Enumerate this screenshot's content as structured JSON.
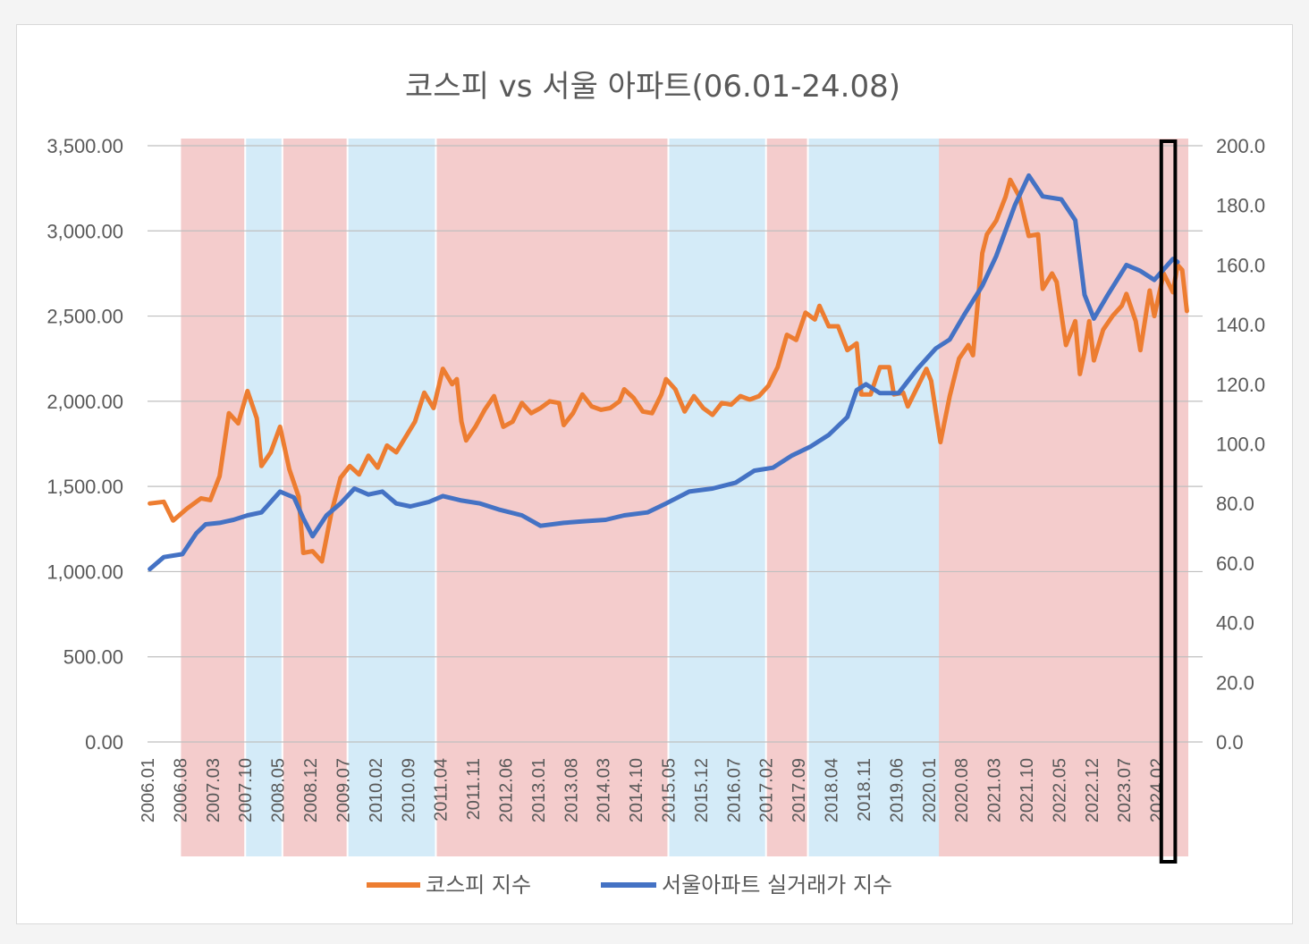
{
  "chart_data": {
    "type": "line",
    "title": "코스피 vs 서울 아파트(06.01-24.08)",
    "left_axis": {
      "ylim": [
        0,
        3500
      ],
      "ticks": [
        "0.00",
        "500.00",
        "1,000.00",
        "1,500.00",
        "2,000.00",
        "2,500.00",
        "3,000.00",
        "3,500.00"
      ]
    },
    "right_axis": {
      "ylim": [
        0,
        200
      ],
      "ticks": [
        "0.0",
        "20.0",
        "40.0",
        "60.0",
        "80.0",
        "100.0",
        "120.0",
        "140.0",
        "160.0",
        "180.0",
        "200.0"
      ]
    },
    "x_tick_labels": [
      "2006.01",
      "2006.08",
      "2007.03",
      "2007.10",
      "2008.05",
      "2008.12",
      "2009.07",
      "2010.02",
      "2010.09",
      "2011.04",
      "2011.11",
      "2012.06",
      "2013.01",
      "2013.08",
      "2014.03",
      "2014.10",
      "2015.05",
      "2015.12",
      "2016.07",
      "2017.02",
      "2017.09",
      "2018.04",
      "2018.11",
      "2019.06",
      "2020.01",
      "2020.08",
      "2021.03",
      "2021.10",
      "2022.05",
      "2022.12",
      "2023.07",
      "2024.02"
    ],
    "grid": true,
    "legend_position": "bottom",
    "shaded_periods": [
      {
        "start": "2006.08",
        "end": "2007.09",
        "color": "#f4cccc"
      },
      {
        "start": "2007.10",
        "end": "2008.05",
        "color": "#d4ebf8"
      },
      {
        "start": "2008.06",
        "end": "2009.07",
        "color": "#f4cccc"
      },
      {
        "start": "2009.08",
        "end": "2011.02",
        "color": "#d4ebf8"
      },
      {
        "start": "2011.03",
        "end": "2015.04",
        "color": "#f4cccc"
      },
      {
        "start": "2015.05",
        "end": "2017.01",
        "color": "#d4ebf8"
      },
      {
        "start": "2017.02",
        "end": "2017.10",
        "color": "#f4cccc"
      },
      {
        "start": "2017.11",
        "end": "2020.03",
        "color": "#d4ebf8"
      },
      {
        "start": "2020.03",
        "end": "2024.08",
        "color": "#f4cccc"
      }
    ],
    "highlight_box": {
      "start": "2024.03",
      "end": "2024.05"
    },
    "series": [
      {
        "name": "코스피 지수",
        "axis": "left",
        "color": "#ed7d31",
        "points": [
          [
            "2006.01",
            1400
          ],
          [
            "2006.04",
            1410
          ],
          [
            "2006.06",
            1300
          ],
          [
            "2006.09",
            1370
          ],
          [
            "2006.12",
            1430
          ],
          [
            "2007.02",
            1420
          ],
          [
            "2007.04",
            1560
          ],
          [
            "2007.06",
            1930
          ],
          [
            "2007.08",
            1870
          ],
          [
            "2007.10",
            2060
          ],
          [
            "2007.12",
            1900
          ],
          [
            "2008.01",
            1620
          ],
          [
            "2008.03",
            1700
          ],
          [
            "2008.05",
            1850
          ],
          [
            "2008.07",
            1600
          ],
          [
            "2008.09",
            1440
          ],
          [
            "2008.10",
            1110
          ],
          [
            "2008.12",
            1120
          ],
          [
            "2009.02",
            1060
          ],
          [
            "2009.04",
            1340
          ],
          [
            "2009.06",
            1550
          ],
          [
            "2009.08",
            1620
          ],
          [
            "2009.10",
            1570
          ],
          [
            "2009.12",
            1680
          ],
          [
            "2010.02",
            1610
          ],
          [
            "2010.04",
            1740
          ],
          [
            "2010.06",
            1700
          ],
          [
            "2010.08",
            1790
          ],
          [
            "2010.10",
            1880
          ],
          [
            "2010.12",
            2050
          ],
          [
            "2011.02",
            1960
          ],
          [
            "2011.04",
            2190
          ],
          [
            "2011.06",
            2100
          ],
          [
            "2011.07",
            2130
          ],
          [
            "2011.08",
            1880
          ],
          [
            "2011.09",
            1770
          ],
          [
            "2011.11",
            1850
          ],
          [
            "2012.01",
            1950
          ],
          [
            "2012.03",
            2030
          ],
          [
            "2012.05",
            1850
          ],
          [
            "2012.07",
            1880
          ],
          [
            "2012.09",
            1990
          ],
          [
            "2012.11",
            1930
          ],
          [
            "2013.01",
            1960
          ],
          [
            "2013.03",
            2000
          ],
          [
            "2013.05",
            1990
          ],
          [
            "2013.06",
            1860
          ],
          [
            "2013.08",
            1930
          ],
          [
            "2013.10",
            2040
          ],
          [
            "2013.12",
            1970
          ],
          [
            "2014.02",
            1950
          ],
          [
            "2014.04",
            1960
          ],
          [
            "2014.06",
            2000
          ],
          [
            "2014.07",
            2070
          ],
          [
            "2014.09",
            2020
          ],
          [
            "2014.11",
            1940
          ],
          [
            "2015.01",
            1930
          ],
          [
            "2015.03",
            2040
          ],
          [
            "2015.04",
            2130
          ],
          [
            "2015.06",
            2070
          ],
          [
            "2015.08",
            1940
          ],
          [
            "2015.10",
            2030
          ],
          [
            "2015.12",
            1960
          ],
          [
            "2016.02",
            1920
          ],
          [
            "2016.04",
            1990
          ],
          [
            "2016.06",
            1980
          ],
          [
            "2016.08",
            2030
          ],
          [
            "2016.10",
            2010
          ],
          [
            "2016.12",
            2030
          ],
          [
            "2017.02",
            2090
          ],
          [
            "2017.04",
            2200
          ],
          [
            "2017.06",
            2390
          ],
          [
            "2017.08",
            2360
          ],
          [
            "2017.10",
            2520
          ],
          [
            "2017.12",
            2480
          ],
          [
            "2018.01",
            2560
          ],
          [
            "2018.03",
            2440
          ],
          [
            "2018.05",
            2440
          ],
          [
            "2018.07",
            2300
          ],
          [
            "2018.09",
            2340
          ],
          [
            "2018.10",
            2040
          ],
          [
            "2018.12",
            2040
          ],
          [
            "2019.02",
            2200
          ],
          [
            "2019.04",
            2200
          ],
          [
            "2019.05",
            2040
          ],
          [
            "2019.07",
            2050
          ],
          [
            "2019.08",
            1970
          ],
          [
            "2019.10",
            2080
          ],
          [
            "2019.12",
            2190
          ],
          [
            "2020.01",
            2120
          ],
          [
            "2020.03",
            1760
          ],
          [
            "2020.05",
            2030
          ],
          [
            "2020.07",
            2250
          ],
          [
            "2020.09",
            2330
          ],
          [
            "2020.10",
            2270
          ],
          [
            "2020.12",
            2870
          ],
          [
            "2021.01",
            2980
          ],
          [
            "2021.03",
            3060
          ],
          [
            "2021.05",
            3200
          ],
          [
            "2021.06",
            3300
          ],
          [
            "2021.08",
            3200
          ],
          [
            "2021.10",
            2970
          ],
          [
            "2021.12",
            2980
          ],
          [
            "2022.01",
            2660
          ],
          [
            "2022.03",
            2750
          ],
          [
            "2022.04",
            2700
          ],
          [
            "2022.06",
            2330
          ],
          [
            "2022.08",
            2470
          ],
          [
            "2022.09",
            2160
          ],
          [
            "2022.10",
            2290
          ],
          [
            "2022.11",
            2470
          ],
          [
            "2022.12",
            2240
          ],
          [
            "2023.02",
            2420
          ],
          [
            "2023.04",
            2500
          ],
          [
            "2023.06",
            2560
          ],
          [
            "2023.07",
            2630
          ],
          [
            "2023.09",
            2470
          ],
          [
            "2023.10",
            2300
          ],
          [
            "2023.12",
            2650
          ],
          [
            "2024.01",
            2500
          ],
          [
            "2024.03",
            2750
          ],
          [
            "2024.05",
            2640
          ],
          [
            "2024.06",
            2800
          ],
          [
            "2024.07",
            2770
          ],
          [
            "2024.08",
            2530
          ]
        ]
      },
      {
        "name": "서울아파트 실거래가 지수",
        "axis": "right",
        "color": "#4472c4",
        "points": [
          [
            "2006.01",
            58
          ],
          [
            "2006.04",
            62
          ],
          [
            "2006.08",
            63
          ],
          [
            "2006.11",
            70
          ],
          [
            "2007.01",
            73
          ],
          [
            "2007.04",
            73.5
          ],
          [
            "2007.07",
            74.5
          ],
          [
            "2007.10",
            76
          ],
          [
            "2008.01",
            77
          ],
          [
            "2008.05",
            84
          ],
          [
            "2008.08",
            82
          ],
          [
            "2008.10",
            75
          ],
          [
            "2008.12",
            69
          ],
          [
            "2009.03",
            76
          ],
          [
            "2009.06",
            80
          ],
          [
            "2009.09",
            85
          ],
          [
            "2009.12",
            83
          ],
          [
            "2010.03",
            84
          ],
          [
            "2010.06",
            80
          ],
          [
            "2010.09",
            79
          ],
          [
            "2011.01",
            80.5
          ],
          [
            "2011.04",
            82.5
          ],
          [
            "2011.08",
            81
          ],
          [
            "2011.12",
            80
          ],
          [
            "2012.04",
            78
          ],
          [
            "2012.09",
            76
          ],
          [
            "2013.01",
            72.5
          ],
          [
            "2013.06",
            73.5
          ],
          [
            "2013.10",
            74
          ],
          [
            "2014.03",
            74.5
          ],
          [
            "2014.07",
            76
          ],
          [
            "2014.12",
            77
          ],
          [
            "2015.04",
            80
          ],
          [
            "2015.09",
            84
          ],
          [
            "2016.02",
            85
          ],
          [
            "2016.07",
            87
          ],
          [
            "2016.11",
            91
          ],
          [
            "2017.03",
            92
          ],
          [
            "2017.07",
            96
          ],
          [
            "2017.11",
            99
          ],
          [
            "2018.03",
            103
          ],
          [
            "2018.07",
            109
          ],
          [
            "2018.09",
            118
          ],
          [
            "2018.11",
            120
          ],
          [
            "2019.02",
            117
          ],
          [
            "2019.06",
            117
          ],
          [
            "2019.10",
            125
          ],
          [
            "2020.02",
            132
          ],
          [
            "2020.05",
            135
          ],
          [
            "2020.08",
            143
          ],
          [
            "2020.12",
            153
          ],
          [
            "2021.03",
            163
          ],
          [
            "2021.07",
            180
          ],
          [
            "2021.10",
            190
          ],
          [
            "2022.01",
            183
          ],
          [
            "2022.05",
            182
          ],
          [
            "2022.08",
            175
          ],
          [
            "2022.10",
            150
          ],
          [
            "2022.12",
            142
          ],
          [
            "2023.03",
            150
          ],
          [
            "2023.07",
            160
          ],
          [
            "2023.10",
            158
          ],
          [
            "2024.01",
            155
          ],
          [
            "2024.05",
            162
          ],
          [
            "2024.06",
            161
          ]
        ]
      }
    ]
  },
  "legend": {
    "kospi": "코스피 지수",
    "seoul_apt": "서울아파트 실거래가 지수"
  }
}
